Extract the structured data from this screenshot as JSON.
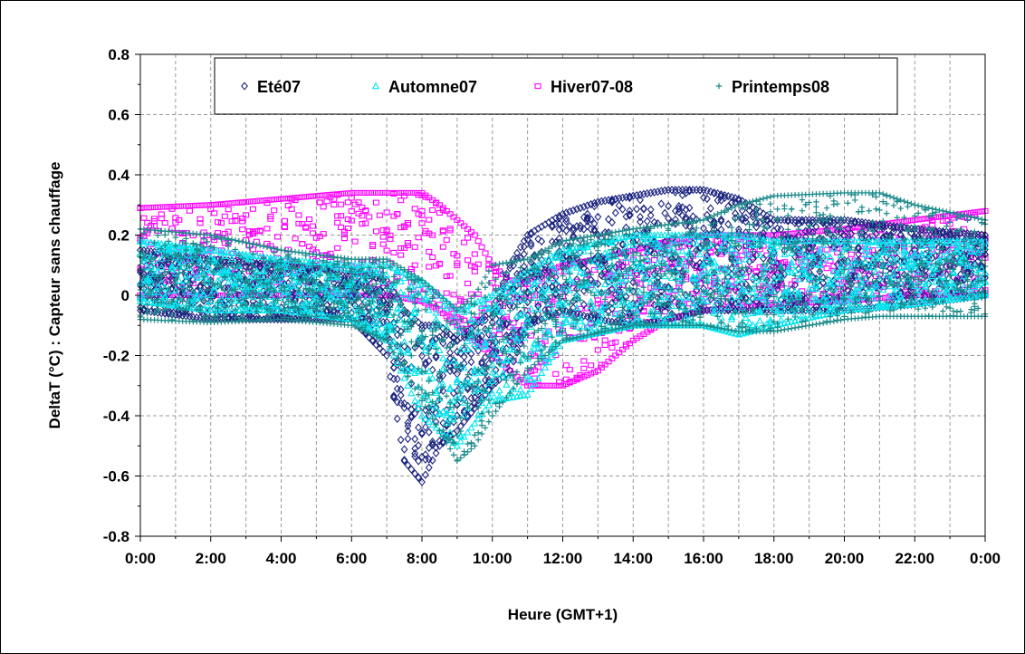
{
  "chart_data": {
    "type": "scatter",
    "title": "",
    "xlabel": "Heure (GMT+1)",
    "ylabel": "DeltaT (°C) : Capteur sans chauffage",
    "xlim": [
      0,
      24
    ],
    "ylim": [
      -0.8,
      0.8
    ],
    "x_tick_labels": [
      "0:00",
      "2:00",
      "4:00",
      "6:00",
      "8:00",
      "10:00",
      "12:00",
      "14:00",
      "16:00",
      "18:00",
      "20:00",
      "22:00",
      "0:00"
    ],
    "y_tick_labels": [
      "0.8",
      "0.6",
      "0.4",
      "0.2",
      "0",
      "-0.2",
      "-0.4",
      "-0.6",
      "-0.8"
    ],
    "y_ticks": [
      0.8,
      0.6,
      0.4,
      0.2,
      0,
      -0.2,
      -0.4,
      -0.6,
      -0.8
    ],
    "grid": true,
    "legend_position": "top",
    "series": [
      {
        "name": "Eté07",
        "marker": "diamond",
        "color": "#1a237e",
        "envelope": {
          "x": [
            0,
            2,
            4,
            6,
            7,
            7.5,
            8,
            8.5,
            9,
            10,
            10.5,
            11,
            12,
            13,
            14,
            15,
            16,
            17,
            18,
            20,
            22,
            24
          ],
          "upper": [
            0.15,
            0.12,
            0.1,
            0.08,
            0.05,
            -0.05,
            -0.1,
            -0.1,
            -0.15,
            -0.05,
            0.1,
            0.2,
            0.27,
            0.31,
            0.33,
            0.35,
            0.35,
            0.32,
            0.25,
            0.25,
            0.22,
            0.2
          ],
          "lower": [
            -0.05,
            -0.08,
            -0.08,
            -0.08,
            -0.2,
            -0.55,
            -0.62,
            -0.5,
            -0.45,
            -0.3,
            -0.25,
            -0.1,
            -0.05,
            -0.08,
            -0.1,
            -0.08,
            -0.05,
            -0.05,
            -0.05,
            -0.05,
            -0.03,
            0
          ]
        }
      },
      {
        "name": "Automne07",
        "marker": "triangle",
        "color": "#00e5ee",
        "envelope": {
          "x": [
            0,
            2,
            4,
            6,
            7,
            8,
            9,
            10,
            11,
            12,
            14,
            16,
            17,
            18,
            20,
            22,
            24
          ],
          "upper": [
            0.18,
            0.15,
            0.12,
            0.1,
            0.1,
            0.05,
            -0.05,
            0.0,
            0.08,
            0.15,
            0.2,
            0.2,
            0.2,
            0.18,
            0.18,
            0.18,
            0.18
          ],
          "lower": [
            -0.02,
            -0.05,
            -0.05,
            -0.08,
            -0.15,
            -0.4,
            -0.5,
            -0.35,
            -0.33,
            -0.15,
            -0.1,
            -0.1,
            -0.13,
            -0.1,
            -0.05,
            -0.03,
            0
          ]
        }
      },
      {
        "name": "Hiver07-08",
        "marker": "square",
        "color": "#ff00ff",
        "envelope": {
          "x": [
            0,
            2,
            4,
            6,
            7,
            8,
            8.5,
            9,
            9.5,
            10,
            10.5,
            11,
            12,
            13,
            14,
            15,
            16,
            18,
            20,
            22,
            24
          ],
          "upper": [
            0.29,
            0.3,
            0.32,
            0.34,
            0.34,
            0.34,
            0.3,
            0.25,
            0.2,
            0.1,
            0.05,
            0.05,
            0.1,
            0.12,
            0.15,
            0.18,
            0.2,
            0.2,
            0.22,
            0.25,
            0.28
          ],
          "lower": [
            0.0,
            0.0,
            0.0,
            0.0,
            0.0,
            -0.02,
            -0.05,
            -0.1,
            -0.15,
            -0.2,
            -0.25,
            -0.3,
            -0.3,
            -0.25,
            -0.15,
            -0.08,
            -0.05,
            -0.03,
            -0.02,
            0.0,
            0.0
          ]
        }
      },
      {
        "name": "Printemps08",
        "marker": "plus",
        "color": "#1b8a8a",
        "envelope": {
          "x": [
            0,
            2,
            4,
            6,
            7,
            8,
            8.5,
            9,
            9.5,
            10,
            11,
            12,
            14,
            16,
            17,
            18,
            20,
            21,
            22,
            24
          ],
          "upper": [
            0.22,
            0.2,
            0.15,
            0.12,
            0.12,
            0.05,
            0.0,
            -0.05,
            0.0,
            0.1,
            0.12,
            0.18,
            0.22,
            0.25,
            0.3,
            0.33,
            0.34,
            0.34,
            0.3,
            0.25
          ],
          "lower": [
            -0.08,
            -0.09,
            -0.08,
            -0.1,
            -0.15,
            -0.35,
            -0.45,
            -0.55,
            -0.5,
            -0.4,
            -0.25,
            -0.15,
            -0.1,
            -0.1,
            -0.12,
            -0.12,
            -0.08,
            -0.07,
            -0.07,
            -0.07
          ]
        }
      }
    ]
  }
}
